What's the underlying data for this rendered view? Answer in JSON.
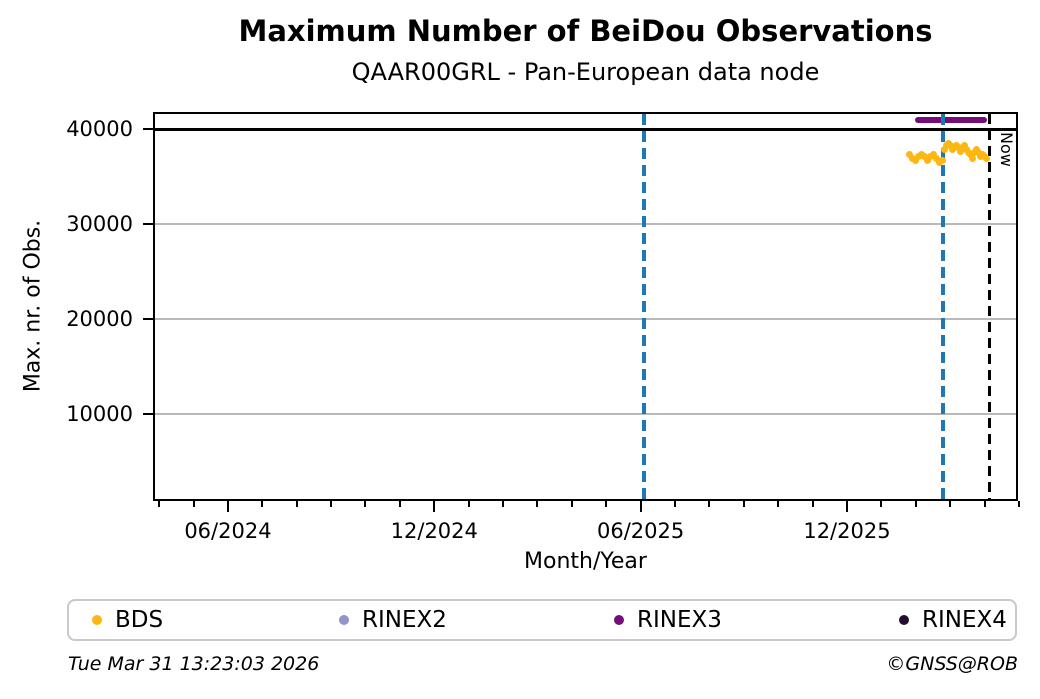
{
  "figure": {
    "footer_timestamp": "Tue Mar 31 13:23:03 2026",
    "footer_credit": "©GNSS@ROB"
  },
  "chart_data": {
    "type": "scatter",
    "title": "Maximum Number of BeiDou Observations",
    "subtitle": "QAAR00GRL - Pan-European data node",
    "xlabel": "Month/Year",
    "ylabel": "Max. nr. of Obs.",
    "x_unit": "decimal_year",
    "xlim": [
      2024.24,
      2026.336
    ],
    "ylim": [
      600,
      41600
    ],
    "x_ticks": [
      {
        "value": 2024.4167,
        "label": "06/2024"
      },
      {
        "value": 2024.9167,
        "label": "12/2024"
      },
      {
        "value": 2025.4167,
        "label": "06/2025"
      },
      {
        "value": 2025.9167,
        "label": "12/2025"
      }
    ],
    "x_minor_tick_interval_months": 1,
    "y_ticks": [
      {
        "value": 10000,
        "label": "10000"
      },
      {
        "value": 20000,
        "label": "20000"
      },
      {
        "value": 30000,
        "label": "30000"
      },
      {
        "value": 40000,
        "label": "40000"
      }
    ],
    "grid": {
      "horizontal": true,
      "vertical": false,
      "color": "#b9b9b9"
    },
    "annotations": {
      "hline": {
        "y": 40000,
        "color": "#000000",
        "style": "solid"
      },
      "vlines": [
        {
          "x": 2025.424,
          "color": "#1f77b4",
          "style": "dashed",
          "label": ""
        },
        {
          "x": 2026.149,
          "color": "#1f77b4",
          "style": "dashed",
          "label": ""
        },
        {
          "x": 2026.263,
          "color": "#000000",
          "style": "dashed",
          "label": "Now"
        }
      ]
    },
    "series": [
      {
        "name": "BDS",
        "color": "#fcb713",
        "type": "points",
        "points": [
          [
            2026.068,
            37280
          ],
          [
            2026.075,
            36960
          ],
          [
            2026.083,
            36750
          ],
          [
            2026.09,
            37070
          ],
          [
            2026.097,
            37380
          ],
          [
            2026.105,
            37070
          ],
          [
            2026.112,
            36750
          ],
          [
            2026.119,
            37070
          ],
          [
            2026.126,
            37280
          ],
          [
            2026.134,
            36960
          ],
          [
            2026.141,
            36540
          ],
          [
            2026.148,
            36750
          ],
          [
            2026.153,
            37910
          ],
          [
            2026.158,
            38330
          ],
          [
            2026.163,
            38540
          ],
          [
            2026.167,
            38230
          ],
          [
            2026.172,
            37910
          ],
          [
            2026.177,
            38120
          ],
          [
            2026.182,
            38330
          ],
          [
            2026.187,
            38020
          ],
          [
            2026.192,
            37700
          ],
          [
            2026.197,
            38020
          ],
          [
            2026.201,
            38230
          ],
          [
            2026.206,
            37910
          ],
          [
            2026.211,
            37590
          ],
          [
            2026.216,
            37280
          ],
          [
            2026.221,
            36860
          ],
          [
            2026.225,
            37590
          ],
          [
            2026.23,
            37810
          ],
          [
            2026.235,
            37490
          ],
          [
            2026.24,
            37170
          ],
          [
            2026.245,
            37380
          ],
          [
            2026.25,
            37070
          ],
          [
            2026.255,
            36860
          ]
        ]
      },
      {
        "name": "RINEX2",
        "color": "#9394c7",
        "type": "points",
        "points": []
      },
      {
        "name": "RINEX3",
        "color": "#750d78",
        "type": "segment",
        "segments": [
          [
            2026.082,
            2026.256,
            41000
          ]
        ]
      },
      {
        "name": "RINEX4",
        "color": "#250d30",
        "type": "points",
        "points": []
      }
    ],
    "legend": {
      "position": "bottom",
      "entries": [
        "BDS",
        "RINEX2",
        "RINEX3",
        "RINEX4"
      ]
    }
  }
}
